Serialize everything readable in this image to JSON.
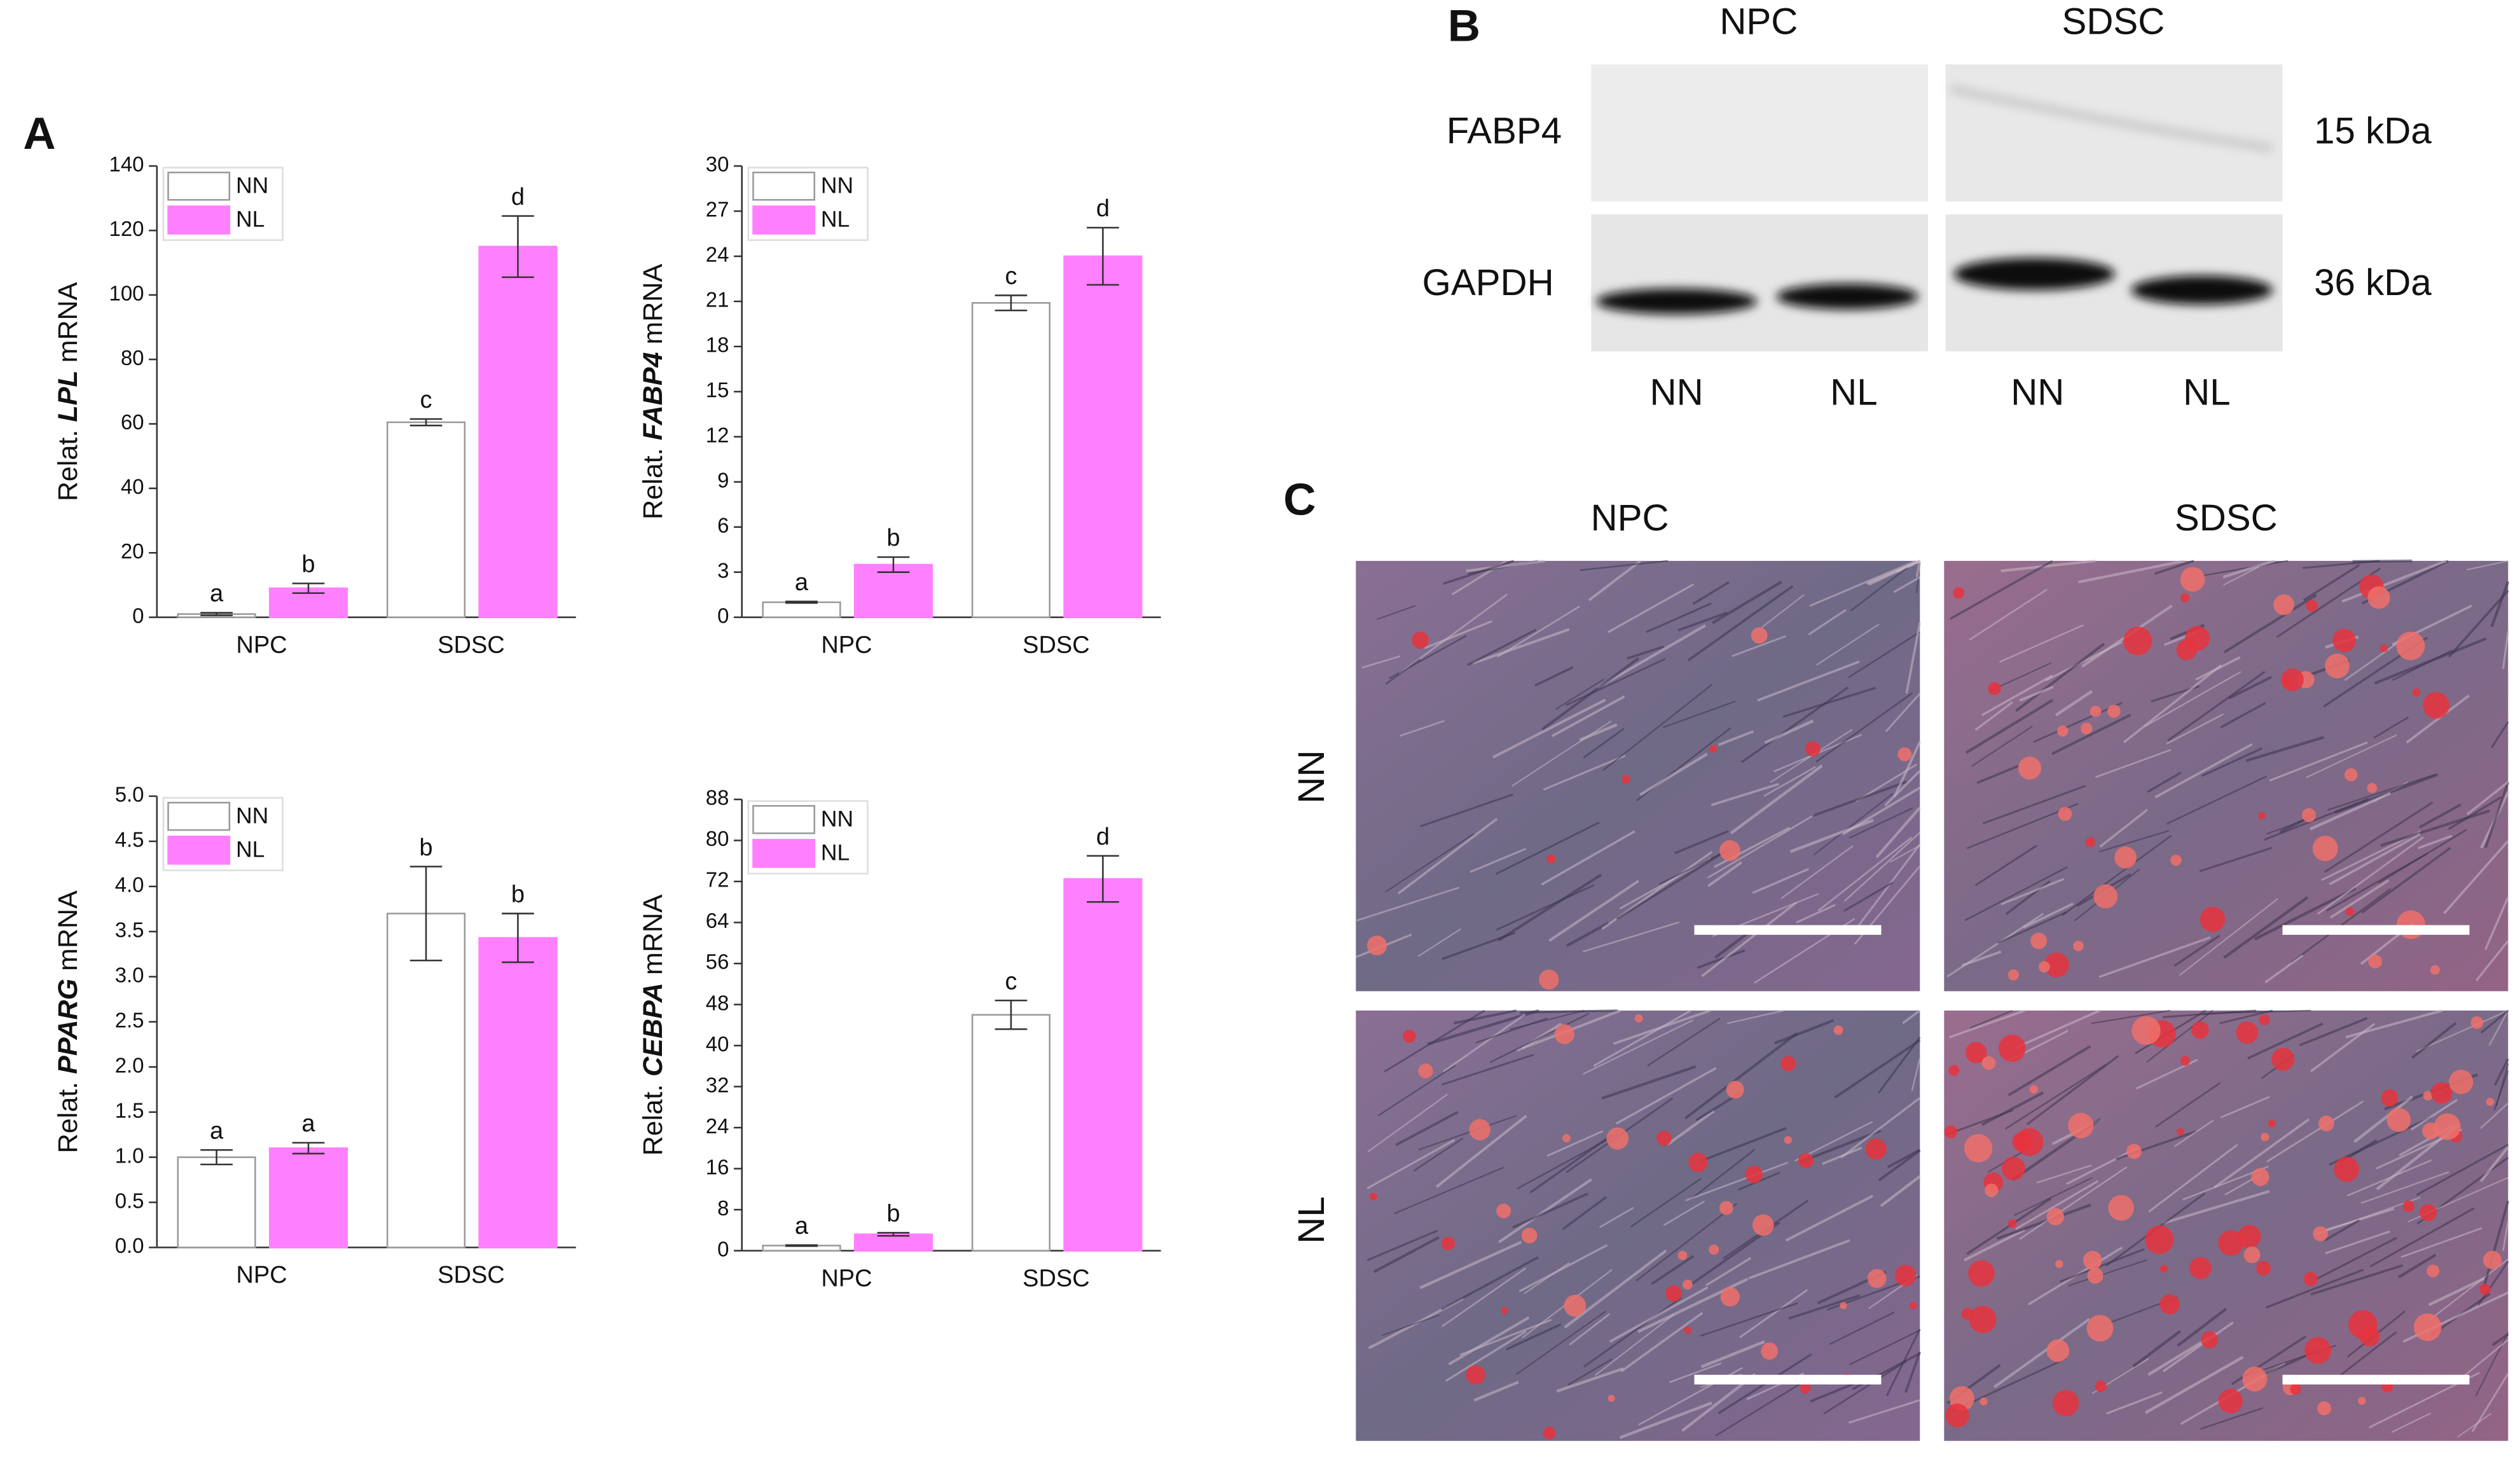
{
  "chart_data": [
    {
      "type": "bar",
      "y_label": {
        "prefix": "Relat.",
        "gene": "LPL",
        "suffix": "mRNA"
      },
      "categories": [
        "NPC",
        "SDSC"
      ],
      "series": [
        {
          "name": "NN",
          "color": "#ffffff",
          "values": [
            1,
            60.5
          ],
          "errors": [
            0.4,
            1
          ],
          "annotations": [
            "a",
            "c"
          ]
        },
        {
          "name": "NL",
          "color": "#ff80ff",
          "values": [
            9,
            115
          ],
          "errors": [
            1.5,
            9.5
          ],
          "annotations": [
            "b",
            "d"
          ]
        }
      ],
      "ylim": [
        0,
        140
      ],
      "yticks": [
        0,
        20,
        40,
        60,
        80,
        100,
        120,
        140
      ]
    },
    {
      "type": "bar",
      "y_label": {
        "prefix": "Relat.",
        "gene": "FABP4",
        "suffix": "mRNA"
      },
      "categories": [
        "NPC",
        "SDSC"
      ],
      "series": [
        {
          "name": "NN",
          "color": "#ffffff",
          "values": [
            1,
            20.9
          ],
          "errors": [
            0.05,
            0.5
          ],
          "annotations": [
            "a",
            "c"
          ]
        },
        {
          "name": "NL",
          "color": "#ff80ff",
          "values": [
            3.5,
            24
          ],
          "errors": [
            0.5,
            1.9
          ],
          "annotations": [
            "b",
            "d"
          ]
        }
      ],
      "ylim": [
        0,
        30
      ],
      "yticks": [
        0,
        3,
        6,
        9,
        12,
        15,
        18,
        21,
        24,
        27,
        30
      ]
    },
    {
      "type": "bar",
      "y_label": {
        "prefix": "Relat.",
        "gene": "PPARG",
        "suffix": "mRNA"
      },
      "categories": [
        "NPC",
        "SDSC"
      ],
      "series": [
        {
          "name": "NN",
          "color": "#ffffff",
          "values": [
            1.0,
            3.7
          ],
          "errors": [
            0.08,
            0.52
          ],
          "annotations": [
            "a",
            "b"
          ]
        },
        {
          "name": "NL",
          "color": "#ff80ff",
          "values": [
            1.1,
            3.43
          ],
          "errors": [
            0.06,
            0.27
          ],
          "annotations": [
            "a",
            "b"
          ]
        }
      ],
      "ylim": [
        0,
        5
      ],
      "yticks": [
        {
          "value": 0,
          "label": "0.0"
        },
        0.5,
        {
          "value": 1,
          "label": "1.0"
        },
        1.5,
        {
          "value": 2,
          "label": "2.0"
        },
        2.5,
        {
          "value": 3,
          "label": "3.0"
        },
        3.5,
        {
          "value": 4,
          "label": "4.0"
        },
        4.5,
        {
          "value": 5,
          "label": "5.0"
        }
      ]
    },
    {
      "type": "bar",
      "y_label": {
        "prefix": "Relat.",
        "gene": "CEBPA",
        "suffix": "mRNA"
      },
      "categories": [
        "NPC",
        "SDSC"
      ],
      "series": [
        {
          "name": "NN",
          "color": "#ffffff",
          "values": [
            1,
            46
          ],
          "errors": [
            0.1,
            2.8
          ],
          "annotations": [
            "a",
            "c"
          ]
        },
        {
          "name": "NL",
          "color": "#ff80ff",
          "values": [
            3.2,
            72.5
          ],
          "errors": [
            0.3,
            4.5
          ],
          "annotations": [
            "b",
            "d"
          ]
        }
      ],
      "ylim": [
        0,
        88
      ],
      "yticks": [
        0,
        8,
        16,
        24,
        32,
        40,
        48,
        56,
        64,
        72,
        80,
        88
      ]
    }
  ],
  "panel_labels": [
    "A",
    "B",
    "C"
  ],
  "blot": {
    "columns": [
      "NPC",
      "SDSC"
    ],
    "proteins": [
      {
        "name": "FABP4",
        "size": "15 kDa"
      },
      {
        "name": "GAPDH",
        "size": "36 kDa"
      }
    ],
    "lanes": [
      "NN",
      "NL",
      "NN",
      "NL"
    ]
  },
  "micrographs": {
    "columns": [
      "NPC",
      "SDSC"
    ],
    "rows": [
      "NN",
      "NL"
    ]
  }
}
